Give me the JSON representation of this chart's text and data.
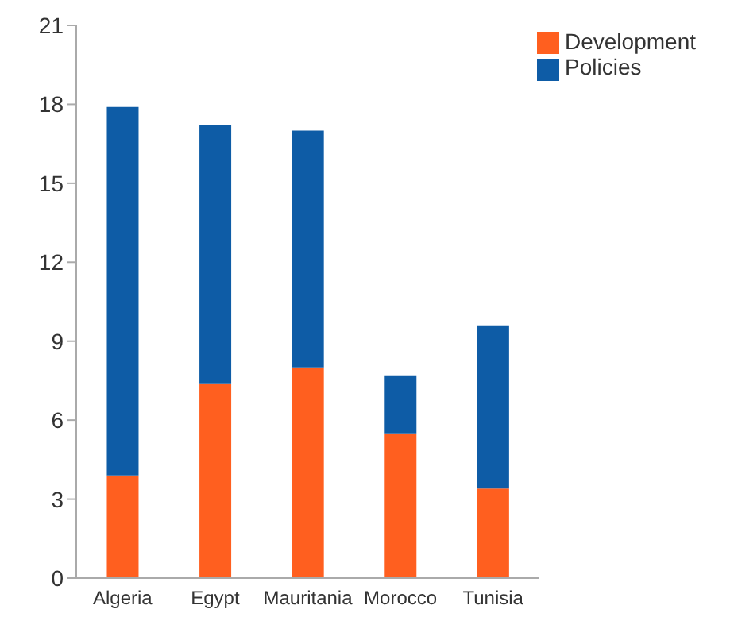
{
  "chart_data": {
    "type": "bar",
    "stacked": true,
    "categories": [
      "Algeria",
      "Egypt",
      "Mauritania",
      "Morocco",
      "Tunisia"
    ],
    "series": [
      {
        "name": "Development",
        "color": "#ff5f1f",
        "values": [
          3.9,
          7.4,
          8.0,
          5.5,
          3.4
        ]
      },
      {
        "name": "Policies",
        "color": "#0e5ca6",
        "values": [
          14.0,
          9.8,
          9.0,
          2.2,
          6.2
        ]
      }
    ],
    "ylim": [
      0,
      21
    ],
    "yticks": [
      0,
      3,
      6,
      9,
      12,
      15,
      18,
      21
    ],
    "grid": false,
    "legend": "top right"
  }
}
